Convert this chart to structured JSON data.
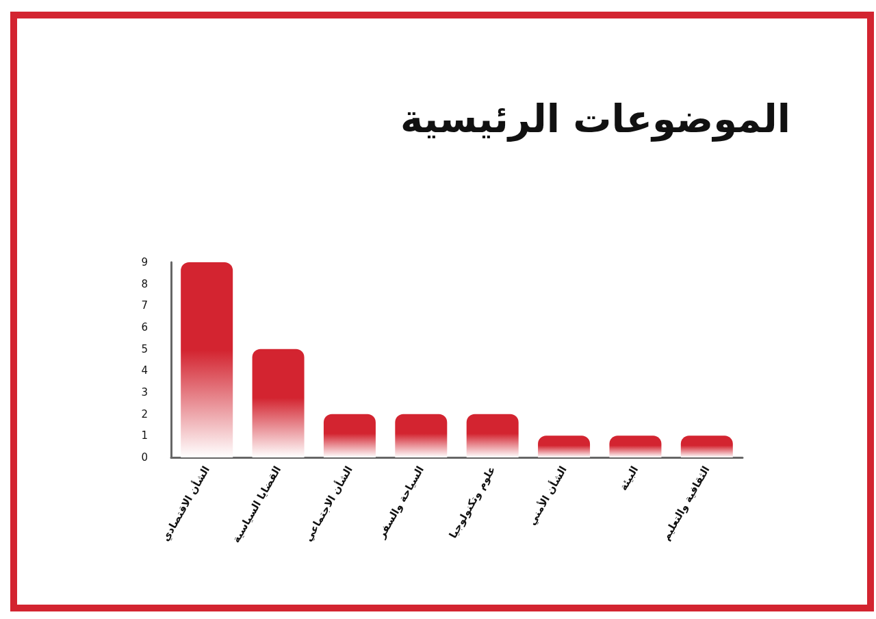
{
  "chart_data": {
    "type": "bar",
    "title": "الموضوعات الرئيسية",
    "categories": [
      "الشأن الاقتصادي",
      "القضايا السياسية",
      "الشأن الاجتماعي",
      "السياحة والسفر",
      "علوم وتكنولوجيا",
      "الشأن الأمني",
      "البيئة",
      "الثقافية والتعليم"
    ],
    "values": [
      9,
      5,
      2,
      2,
      2,
      1,
      1,
      1
    ],
    "color": "#d32430",
    "ylim": [
      0,
      9
    ],
    "yticks": [
      0,
      1,
      2,
      3,
      4,
      5,
      6,
      7,
      8,
      9
    ],
    "grid": false
  }
}
